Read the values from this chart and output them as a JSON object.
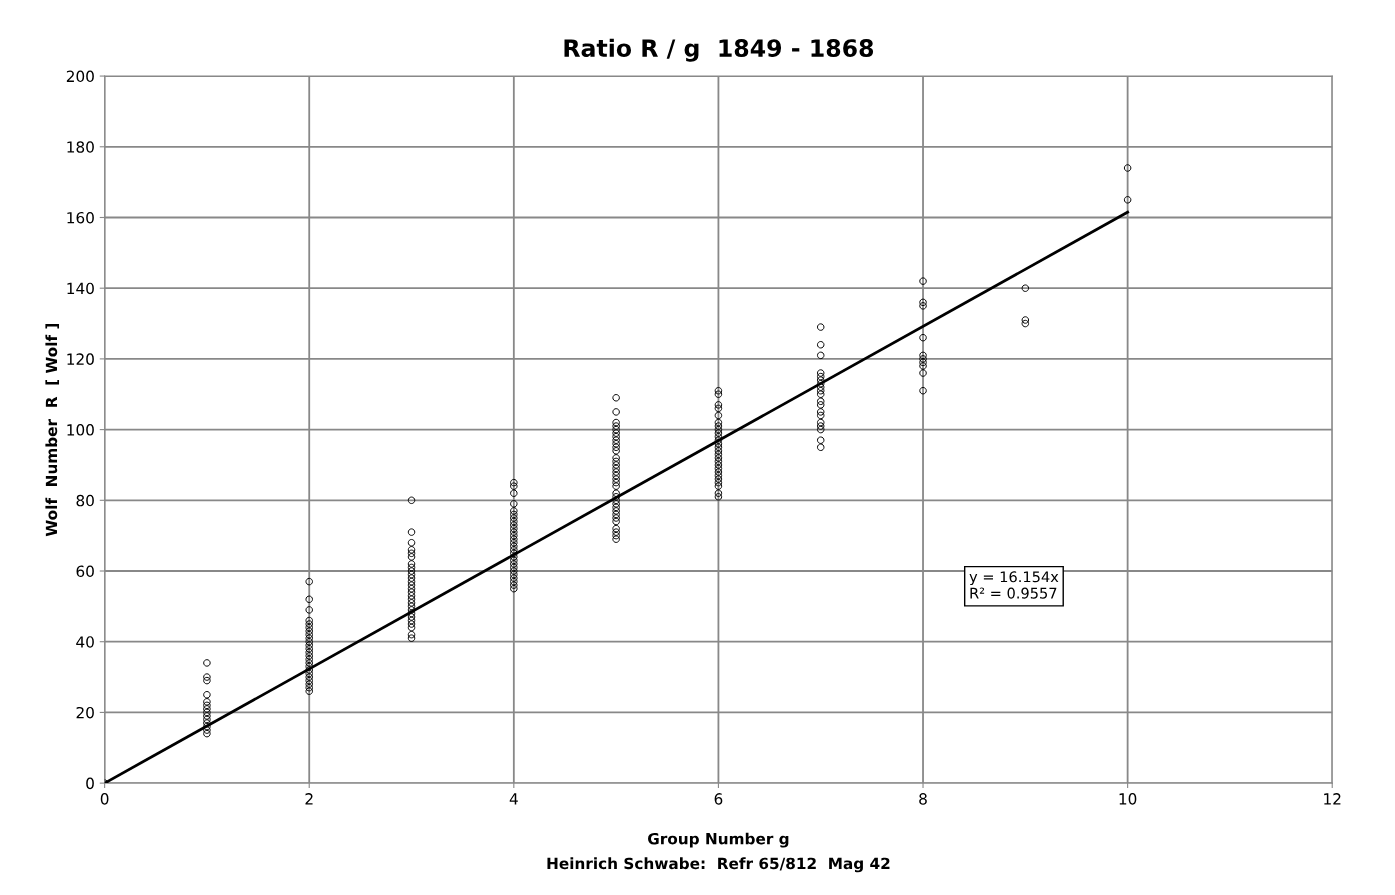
{
  "chart_data": {
    "type": "scatter",
    "title": "Ratio R / g  1849 - 1868",
    "xlabel": "Group Number g",
    "ylabel": "Wolf  Number  R  [ Wolf ]",
    "annotations": [
      "y = 16.154x\nR² = 0.9557",
      "Heinrich Schwabe:  Refr 65/812  Mag 42"
    ],
    "xlim": [
      0,
      12
    ],
    "xticks": [
      0,
      2,
      4,
      6,
      8,
      10,
      12
    ],
    "ylim": [
      0,
      200
    ],
    "yticks": [
      0,
      20,
      40,
      60,
      80,
      100,
      120,
      140,
      160,
      180,
      200
    ],
    "grid": true,
    "legend": false,
    "marker": "circle",
    "series": [
      {
        "color": "#000000",
        "x": [
          0,
          1,
          1,
          1,
          1,
          1,
          1,
          1,
          1,
          1,
          1,
          1,
          1,
          1,
          1,
          2,
          2,
          2,
          2,
          2,
          2,
          2,
          2,
          2,
          2,
          2,
          2,
          2,
          2,
          2,
          2,
          2,
          2,
          2,
          2,
          2,
          2,
          2,
          2,
          3,
          3,
          3,
          3,
          3,
          3,
          3,
          3,
          3,
          3,
          3,
          3,
          3,
          3,
          3,
          3,
          3,
          3,
          3,
          3,
          3,
          3,
          3,
          3,
          3,
          3,
          3,
          4,
          4,
          4,
          4,
          4,
          4,
          4,
          4,
          4,
          4,
          4,
          4,
          4,
          4,
          4,
          4,
          4,
          4,
          4,
          4,
          4,
          4,
          4,
          4,
          4,
          4,
          4,
          5,
          5,
          5,
          5,
          5,
          5,
          5,
          5,
          5,
          5,
          5,
          5,
          5,
          5,
          5,
          5,
          5,
          5,
          5,
          5,
          5,
          5,
          5,
          5,
          5,
          5,
          5,
          5,
          5,
          5,
          5,
          5,
          5,
          6,
          6,
          6,
          6,
          6,
          6,
          6,
          6,
          6,
          6,
          6,
          6,
          6,
          6,
          6,
          6,
          6,
          6,
          6,
          6,
          6,
          6,
          6,
          6,
          6,
          6,
          7,
          7,
          7,
          7,
          7,
          7,
          7,
          7,
          7,
          7,
          7,
          7,
          7,
          7,
          7,
          7,
          7,
          7,
          7,
          8,
          8,
          8,
          8,
          8,
          8,
          8,
          8,
          8,
          8,
          9,
          9,
          9,
          10,
          10
        ],
        "values": [
          0,
          14,
          15,
          16,
          17,
          18,
          19,
          20,
          21,
          22,
          23,
          25,
          29,
          30,
          34,
          26,
          27,
          28,
          29,
          30,
          31,
          32,
          33,
          34,
          35,
          36,
          37,
          38,
          39,
          40,
          41,
          42,
          43,
          44,
          45,
          46,
          49,
          52,
          57,
          41,
          42,
          44,
          45,
          46,
          47,
          48,
          49,
          50,
          51,
          52,
          53,
          54,
          55,
          56,
          57,
          58,
          59,
          60,
          61,
          62,
          64,
          65,
          66,
          68,
          71,
          80,
          55,
          56,
          57,
          58,
          59,
          60,
          61,
          62,
          63,
          64,
          65,
          66,
          67,
          68,
          69,
          70,
          71,
          72,
          73,
          74,
          75,
          76,
          77,
          79,
          82,
          84,
          85,
          69,
          70,
          71,
          72,
          74,
          75,
          76,
          77,
          78,
          79,
          80,
          81,
          82,
          84,
          85,
          86,
          87,
          88,
          89,
          90,
          91,
          92,
          94,
          95,
          96,
          97,
          98,
          99,
          100,
          101,
          102,
          105,
          109,
          81,
          82,
          84,
          85,
          86,
          87,
          88,
          89,
          90,
          91,
          92,
          93,
          94,
          95,
          96,
          97,
          98,
          99,
          100,
          101,
          102,
          104,
          106,
          107,
          110,
          111,
          95,
          97,
          100,
          101,
          102,
          104,
          105,
          107,
          108,
          110,
          111,
          112,
          113,
          114,
          115,
          116,
          121,
          124,
          129,
          111,
          116,
          118,
          119,
          120,
          121,
          126,
          135,
          136,
          142,
          130,
          131,
          140,
          165,
          174
        ]
      },
      {
        "type": "line",
        "color": "#000000",
        "marker": "none",
        "line_style": "solid",
        "x": [
          0,
          10
        ],
        "values": [
          0,
          161.5
        ]
      }
    ]
  }
}
